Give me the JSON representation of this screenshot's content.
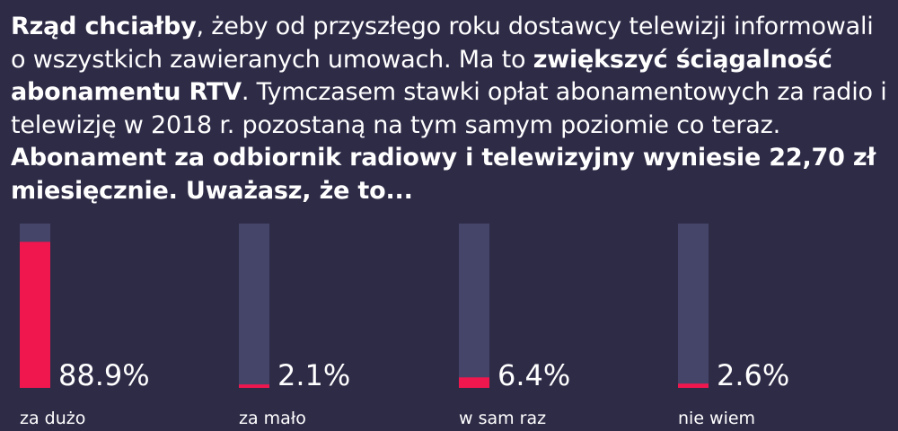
{
  "question": {
    "segments": [
      {
        "text": "Rząd chciałby",
        "bold": true
      },
      {
        "text": ", żeby od przyszłego roku dostawcy telewizji informowali o wszystkich zawieranych umowach. Ma to ",
        "bold": false
      },
      {
        "text": "zwiększyć ściągalność abonamentu RTV",
        "bold": true
      },
      {
        "text": ". Tymczasem stawki opłat abonamentowych za radio i telewizję w 2018 r. pozostaną na tym samym poziomie co teraz. ",
        "bold": false
      },
      {
        "text": "Abonament za odbiornik radiowy i telewizyjny wyniesie 22,70 zł miesięcznie. Uważasz, że to...",
        "bold": true
      }
    ]
  },
  "colors": {
    "background": "#2e2b47",
    "track": "#45456a",
    "fill": "#f0174f",
    "text": "#ffffff"
  },
  "chart_data": {
    "type": "bar",
    "orientation": "vertical",
    "unit": "%",
    "ylim": [
      0,
      100
    ],
    "grid": false,
    "categories": [
      "za dużo",
      "za mało",
      "w sam raz",
      "nie wiem"
    ],
    "values": [
      88.9,
      2.1,
      6.4,
      2.6
    ],
    "value_labels": [
      "88.9%",
      "2.1%",
      "6.4%",
      "2.6%"
    ]
  }
}
